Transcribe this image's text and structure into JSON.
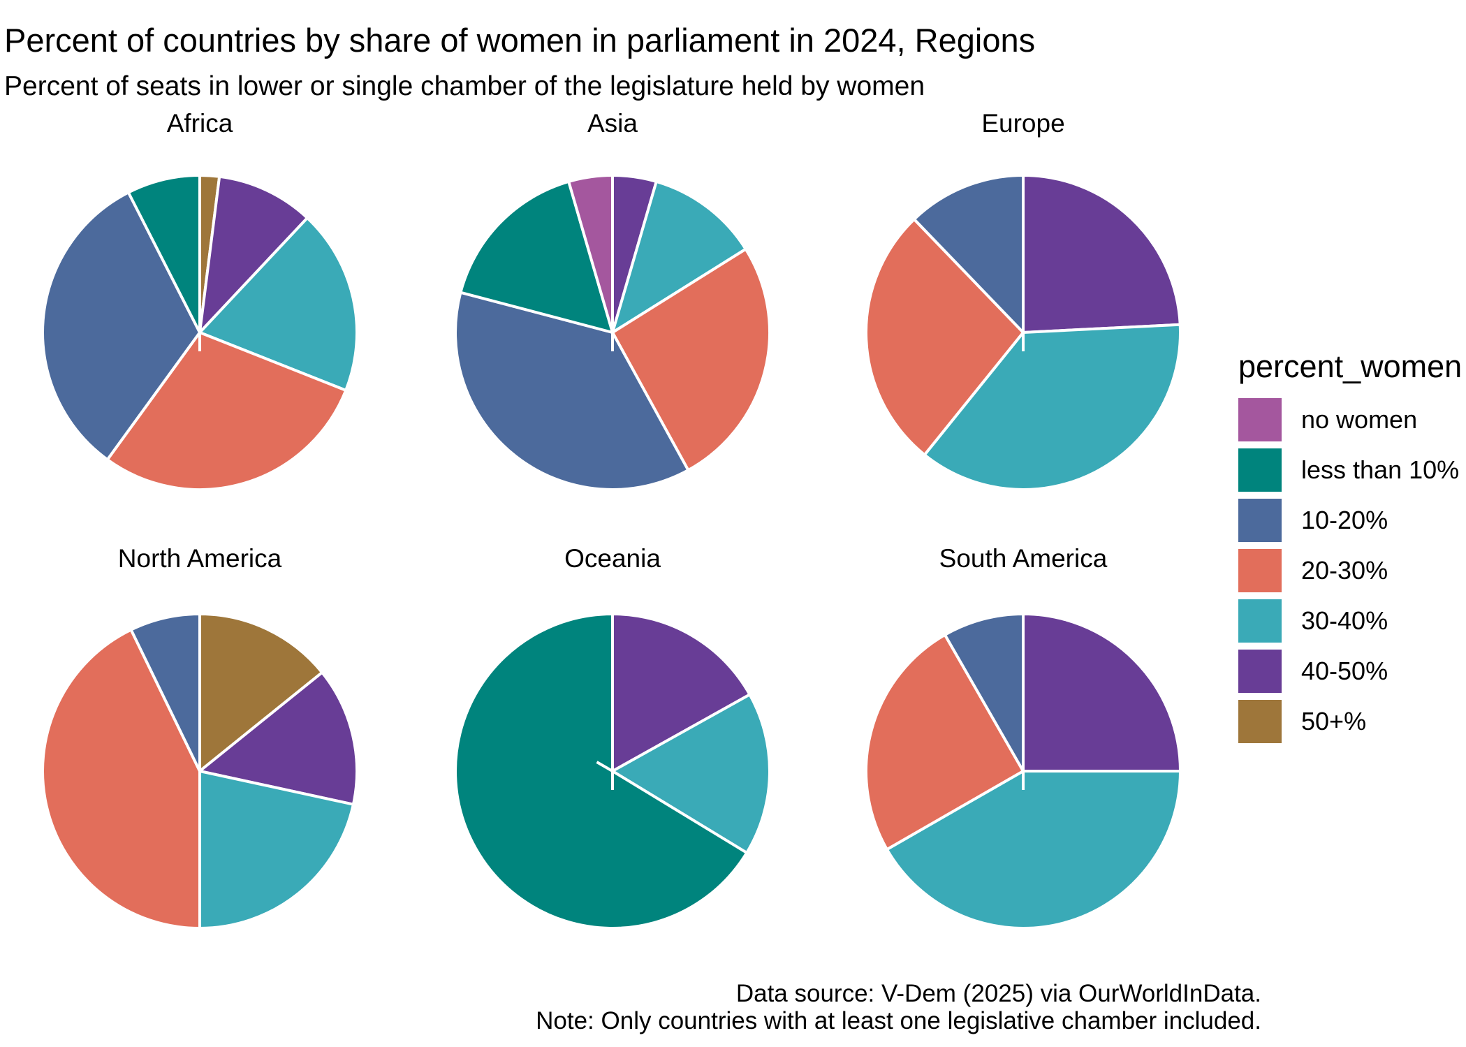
{
  "chart_data": {
    "type": "pie",
    "title": "Percent of countries by share of women in parliament in 2024, Regions",
    "subtitle": "Percent of seats in lower or single chamber of the legislature held by women",
    "legend_title": "percent_women",
    "caption": [
      "Data source: V-Dem (2025) via OurWorldInData.",
      "Note: Only countries with at least one legislative chamber included."
    ],
    "unit": "percent of countries in each region",
    "layout_note": "slices start at 12 o'clock and run clockwise from highest to lowest category; white slice borders",
    "categories": [
      {
        "label": "no women",
        "color": "#A4579E"
      },
      {
        "label": "less than 10%",
        "color": "#00847D"
      },
      {
        "label": "10-20%",
        "color": "#4C6A9C"
      },
      {
        "label": "20-30%",
        "color": "#E26E5B"
      },
      {
        "label": "30-40%",
        "color": "#3AAAB7"
      },
      {
        "label": "40-50%",
        "color": "#683D96"
      },
      {
        "label": "50+%",
        "color": "#9E763A"
      }
    ],
    "facets": [
      {
        "region": "Africa",
        "values": {
          "no women": 0,
          "less than 10%": 7.5,
          "10-20%": 32.5,
          "20-30%": 29.0,
          "30-40%": 19.0,
          "40-50%": 10.0,
          "50+%": 2.0
        }
      },
      {
        "region": "Asia",
        "values": {
          "no women": 4.5,
          "less than 10%": 16.4,
          "10-20%": 37.1,
          "20-30%": 25.9,
          "30-40%": 11.6,
          "40-50%": 4.5,
          "50+%": 0
        }
      },
      {
        "region": "Europe",
        "values": {
          "no women": 0,
          "less than 10%": 0,
          "10-20%": 12.2,
          "20-30%": 27.0,
          "30-40%": 36.6,
          "40-50%": 24.2,
          "50+%": 0
        }
      },
      {
        "region": "North America",
        "values": {
          "no women": 0,
          "less than 10%": 0,
          "10-20%": 7.2,
          "20-30%": 42.8,
          "30-40%": 21.6,
          "40-50%": 14.2,
          "50+%": 14.2
        }
      },
      {
        "region": "Oceania",
        "values": {
          "no women": 0,
          "less than 10%": 66.3,
          "10-20%": 0,
          "20-30%": 0,
          "30-40%": 16.8,
          "40-50%": 16.9,
          "50+%": 0
        }
      },
      {
        "region": "South America",
        "values": {
          "no women": 0,
          "less than 10%": 0,
          "10-20%": 8.3,
          "20-30%": 25.0,
          "30-40%": 41.7,
          "40-50%": 25.0,
          "50+%": 0
        }
      }
    ]
  }
}
